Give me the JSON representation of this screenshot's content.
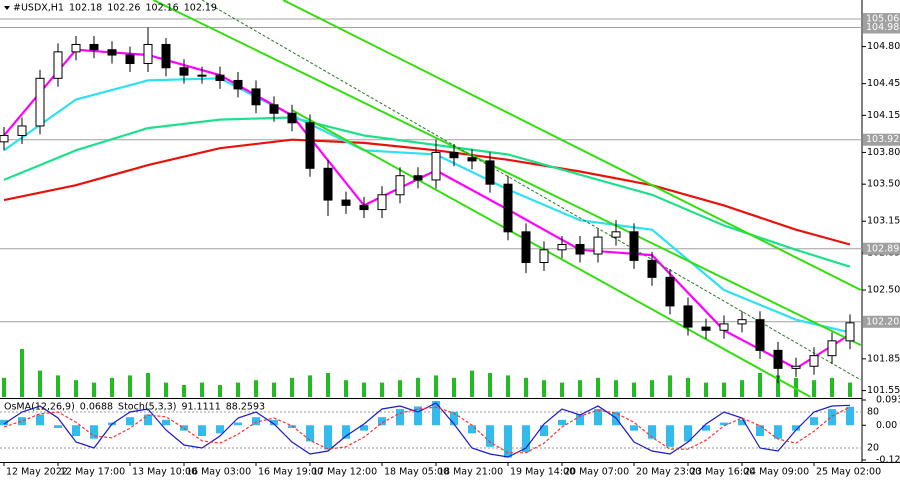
{
  "chart_data": {
    "type": "candlestick",
    "title": "#USDX,H1",
    "last_bar": {
      "open": 102.18,
      "high": 102.26,
      "low": 102.16,
      "close": 102.19
    },
    "categories": [
      "12 May 2022",
      null,
      null,
      "12 May 17:00",
      null,
      null,
      null,
      "13 May 10:00",
      null,
      null,
      "16 May 03:00",
      null,
      null,
      null,
      "16 May 19:00",
      null,
      null,
      "17 May 12:00",
      null,
      null,
      null,
      "18 May 05:00",
      null,
      null,
      "18 May 21:00",
      null,
      null,
      null,
      "19 May 14:00",
      null,
      null,
      "20 May 07:00",
      null,
      null,
      null,
      "20 May 23:00",
      null,
      null,
      "23 May 16:00",
      null,
      null,
      "24 May 09:00",
      null,
      null,
      null,
      "25 May 02:00",
      null,
      null
    ],
    "open": [
      103.9,
      103.96,
      104.05,
      104.5,
      104.75,
      104.82,
      104.77,
      104.72,
      104.64,
      104.82,
      104.6,
      104.53,
      104.53,
      104.48,
      104.4,
      104.25,
      104.17,
      104.08,
      103.65,
      103.35,
      103.3,
      103.26,
      103.4,
      103.58,
      103.54,
      103.8,
      103.75,
      103.72,
      103.5,
      103.05,
      102.76,
      102.88,
      102.93,
      102.84,
      103.0,
      103.05,
      102.78,
      102.62,
      102.35,
      102.15,
      102.12,
      102.18,
      102.22,
      101.93,
      101.76,
      101.78,
      101.88,
      102.02
    ],
    "high": [
      104.04,
      104.13,
      104.58,
      104.83,
      104.9,
      104.9,
      104.85,
      104.8,
      104.98,
      104.88,
      104.68,
      104.61,
      104.61,
      104.56,
      104.48,
      104.33,
      104.25,
      104.16,
      103.73,
      103.43,
      103.38,
      103.48,
      103.66,
      103.66,
      103.92,
      103.88,
      103.83,
      103.8,
      103.58,
      103.13,
      102.96,
      103.01,
      103.01,
      103.08,
      103.16,
      103.13,
      102.86,
      102.7,
      102.43,
      102.23,
      102.26,
      102.3,
      102.3,
      102.01,
      101.86,
      101.96,
      102.1,
      102.27
    ],
    "low": [
      103.82,
      103.88,
      103.97,
      104.42,
      104.67,
      104.69,
      104.64,
      104.56,
      104.56,
      104.52,
      104.45,
      104.45,
      104.4,
      104.32,
      104.17,
      104.09,
      104.0,
      103.57,
      103.2,
      103.22,
      103.18,
      103.18,
      103.32,
      103.46,
      103.46,
      103.67,
      103.64,
      103.42,
      102.97,
      102.66,
      102.68,
      102.8,
      102.76,
      102.76,
      102.92,
      102.7,
      102.54,
      102.27,
      102.07,
      102.04,
      102.04,
      102.1,
      101.85,
      101.62,
      101.68,
      101.7,
      101.8,
      101.94
    ],
    "close": [
      103.96,
      104.05,
      104.5,
      104.75,
      104.82,
      104.77,
      104.72,
      104.64,
      104.82,
      104.6,
      104.53,
      104.53,
      104.48,
      104.4,
      104.25,
      104.17,
      104.08,
      103.65,
      103.35,
      103.3,
      103.26,
      103.4,
      103.58,
      103.54,
      103.8,
      103.75,
      103.72,
      103.5,
      103.05,
      102.76,
      102.88,
      102.93,
      102.84,
      103.0,
      103.05,
      102.78,
      102.62,
      102.35,
      102.15,
      102.12,
      102.18,
      102.22,
      101.93,
      101.76,
      101.78,
      101.88,
      102.02,
      102.19
    ],
    "candle_color": "#000000",
    "ylim": [
      101.48,
      105.24
    ],
    "yticks": [
      {
        "value": 104.8,
        "label": "104.80"
      },
      104.45,
      104.15,
      {
        "value": 103.8,
        "label": "103.80"
      },
      {
        "value": 103.5,
        "label": "103.50"
      },
      103.15,
      102.85,
      {
        "value": 102.5,
        "label": "102.50"
      },
      101.85,
      101.55
    ],
    "levels": [
      105.06,
      104.98,
      103.92,
      102.89,
      {
        "value": 102.2,
        "label": "102.20"
      }
    ],
    "level_color": "#a0a0a0",
    "moving_averages": [
      {
        "color": "#e8120c",
        "x": [
          0,
          4,
          8,
          12,
          16,
          20,
          24,
          28,
          32,
          36,
          40,
          44,
          47
        ],
        "values": [
          103.35,
          103.49,
          103.68,
          103.84,
          103.92,
          103.89,
          103.82,
          103.73,
          103.62,
          103.49,
          103.3,
          103.07,
          102.93
        ]
      },
      {
        "color": "#1ee08c",
        "x": [
          0,
          4,
          8,
          12,
          16,
          20,
          24,
          28,
          32,
          36,
          40,
          44,
          47
        ],
        "values": [
          103.54,
          103.82,
          104.03,
          104.11,
          104.13,
          103.96,
          103.87,
          103.78,
          103.59,
          103.4,
          103.11,
          102.88,
          102.72
        ]
      },
      {
        "color": "#2fe0f0",
        "x": [
          0,
          4,
          8,
          12,
          16,
          20,
          24,
          28,
          32,
          36,
          40,
          44,
          47
        ],
        "values": [
          103.82,
          104.3,
          104.48,
          104.5,
          104.15,
          103.82,
          103.78,
          103.45,
          103.16,
          103.07,
          102.5,
          102.22,
          102.1
        ]
      },
      {
        "color": "#ff00ff",
        "x": [
          0,
          4,
          8,
          12,
          16,
          20,
          24,
          28,
          32,
          36,
          40,
          44,
          47
        ],
        "values": [
          103.96,
          104.77,
          104.72,
          104.53,
          104.15,
          103.3,
          103.63,
          103.26,
          102.88,
          102.83,
          102.12,
          101.76,
          102.08
        ]
      }
    ],
    "trendlines": [
      {
        "color": "#33dd11",
        "x": [
          8.3,
          47.6
        ],
        "values": [
          105.24,
          101.98
        ]
      },
      {
        "color": "#33dd11",
        "x": [
          15.5,
          47.6
        ],
        "values": [
          105.24,
          102.5
        ]
      },
      {
        "color": "#33dd11",
        "x": [
          16,
          44.8
        ],
        "values": [
          104.2,
          101.49
        ]
      },
      {
        "color": "#2a7a2a",
        "x": [
          11,
          47.6
        ],
        "values": [
          105.24,
          101.65
        ],
        "dash": true
      }
    ],
    "volume": {
      "color": "#22bb22",
      "values": [
        40,
        100,
        55,
        45,
        35,
        30,
        40,
        45,
        50,
        30,
        25,
        30,
        25,
        30,
        35,
        30,
        40,
        45,
        50,
        35,
        30,
        30,
        35,
        40,
        45,
        40,
        55,
        50,
        45,
        40,
        35,
        30,
        35,
        40,
        35,
        30,
        35,
        45,
        40,
        30,
        30,
        35,
        50,
        45,
        40,
        35,
        40,
        30
      ]
    },
    "indicator": {
      "ylim": [
        -0.129,
        0.0938
      ],
      "yticks": [
        0.0938,
        {
          "value": 0,
          "label": "0.00"
        },
        -0.129
      ],
      "y2lim": [
        0,
        100
      ],
      "y2ticks": [
        80,
        20
      ],
      "series": [
        {
          "name": "OsMA(12,26,9)",
          "type": "bar",
          "color": "#33bbee",
          "values": [
            0.02,
            0.03,
            0.04,
            -0.01,
            -0.04,
            -0.05,
            0.01,
            0.03,
            0.04,
            0.02,
            -0.02,
            -0.04,
            -0.03,
            0.01,
            0.03,
            0.02,
            -0.01,
            -0.06,
            -0.09,
            -0.05,
            -0.02,
            0.03,
            0.06,
            0.07,
            0.09,
            0.05,
            -0.03,
            -0.08,
            -0.12,
            -0.1,
            -0.04,
            0.02,
            0.04,
            0.06,
            0.05,
            -0.02,
            -0.05,
            -0.08,
            -0.06,
            -0.02,
            0.01,
            0.02,
            -0.04,
            -0.05,
            -0.02,
            0.03,
            0.06,
            0.0688
          ]
        },
        {
          "name": "Stoch(5,3,3)",
          "type": "line",
          "axis": "y2",
          "color": "#1a1acc",
          "values": [
            60,
            80,
            90,
            70,
            30,
            20,
            60,
            80,
            85,
            50,
            25,
            20,
            40,
            70,
            80,
            60,
            30,
            10,
            15,
            40,
            60,
            85,
            90,
            80,
            95,
            60,
            20,
            10,
            5,
            20,
            60,
            85,
            75,
            90,
            70,
            30,
            15,
            10,
            30,
            60,
            80,
            70,
            20,
            15,
            50,
            80,
            90,
            91.1111
          ]
        },
        {
          "type": "line",
          "axis": "y2",
          "color": "#ff3030",
          "dash": true,
          "values": [
            55,
            65,
            77,
            80,
            63,
            40,
            37,
            53,
            75,
            72,
            53,
            32,
            28,
            43,
            63,
            70,
            57,
            33,
            18,
            22,
            38,
            62,
            78,
            85,
            88,
            78,
            58,
            30,
            12,
            12,
            28,
            55,
            73,
            83,
            78,
            63,
            38,
            18,
            18,
            33,
            57,
            70,
            57,
            35,
            28,
            48,
            73,
            88.2593
          ]
        }
      ]
    }
  }
}
